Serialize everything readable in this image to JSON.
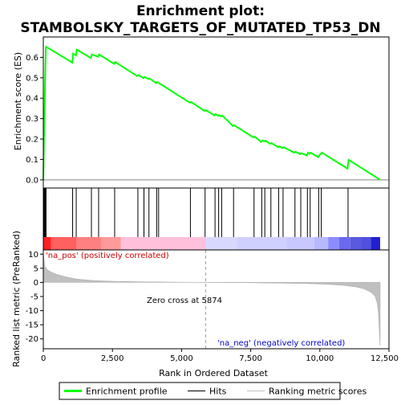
{
  "chart_data": {
    "type": "line",
    "title": "Enrichment plot:\nSTAMBOLSKY_TARGETS_OF_MUTATED_TP53_DN",
    "title_lines": [
      "Enrichment plot:",
      "STAMBOLSKY_TARGETS_OF_MUTATED_TP53_DN"
    ],
    "xlabel": "Rank in Ordered Dataset",
    "ylabel_top": "Enrichment score (ES)",
    "ylabel_bottom": "Ranked list metric (PreRanked)",
    "xlim": [
      0,
      12500
    ],
    "es_ylim": [
      -0.04,
      0.7
    ],
    "metric_ylim": [
      -23.5,
      11.5
    ],
    "x_ticks": [
      0,
      2500,
      5000,
      7500,
      10000,
      12500
    ],
    "x_tick_labels": [
      "0",
      "2,500",
      "5,000",
      "7,500",
      "10,000",
      "12,500"
    ],
    "es_ticks": [
      0.0,
      0.1,
      0.2,
      0.3,
      0.4,
      0.5,
      0.6
    ],
    "es_tick_labels": [
      "0.0",
      "0.1",
      "0.2",
      "0.3",
      "0.4",
      "0.5",
      "0.6"
    ],
    "metric_ticks": [
      10,
      5,
      0,
      -5,
      -10,
      -15,
      -20
    ],
    "metric_tick_labels": [
      "10",
      "5",
      "0",
      "-5",
      "-10",
      "-15",
      "-20"
    ],
    "enrichment_profile": {
      "name": "Enrichment profile",
      "color": "#00ff00",
      "x": [
        0,
        30,
        60,
        90,
        100,
        1050,
        1080,
        1180,
        1210,
        1720,
        1760,
        1980,
        2020,
        2560,
        2600,
        3400,
        3440,
        3620,
        3660,
        3800,
        3840,
        4080,
        4120,
        4180,
        5300,
        5340,
        5830,
        5870,
        6190,
        6230,
        6320,
        6360,
        6430,
        6470,
        6860,
        6900,
        7600,
        7640,
        7880,
        7920,
        7990,
        8030,
        8210,
        8250,
        8490,
        8530,
        8650,
        8690,
        9080,
        9120,
        9290,
        9330,
        9530,
        9570,
        9630,
        9670,
        9940,
        9980,
        10030,
        10070,
        11000,
        11040,
        12180
      ],
      "y": [
        0.0,
        0.23,
        0.46,
        0.64,
        0.652,
        0.575,
        0.618,
        0.61,
        0.638,
        0.597,
        0.614,
        0.603,
        0.614,
        0.568,
        0.577,
        0.508,
        0.513,
        0.499,
        0.504,
        0.494,
        0.497,
        0.474,
        0.479,
        0.474,
        0.378,
        0.382,
        0.338,
        0.342,
        0.316,
        0.322,
        0.314,
        0.317,
        0.311,
        0.315,
        0.264,
        0.268,
        0.208,
        0.212,
        0.186,
        0.193,
        0.188,
        0.192,
        0.176,
        0.18,
        0.16,
        0.164,
        0.156,
        0.16,
        0.133,
        0.138,
        0.126,
        0.131,
        0.12,
        0.133,
        0.128,
        0.133,
        0.111,
        0.121,
        0.126,
        0.134,
        0.055,
        0.098,
        0.0
      ]
    },
    "hits": {
      "name": "Hits",
      "color": "#000000",
      "x": [
        20,
        40,
        60,
        80,
        100,
        1060,
        1190,
        1740,
        2000,
        2580,
        3420,
        3640,
        3820,
        4100,
        4170,
        5320,
        5850,
        6210,
        6340,
        6450,
        6880,
        7620,
        7900,
        8010,
        8230,
        8510,
        8670,
        9100,
        9310,
        9550,
        9650,
        9960,
        10050,
        11020
      ]
    },
    "ranking_metric": {
      "name": "Ranking metric scores",
      "color": "#c0c0c0",
      "x": [
        0,
        50,
        150,
        300,
        500,
        800,
        1200,
        1800,
        2500,
        3500,
        4500,
        5500,
        5874,
        6500,
        7500,
        8500,
        9500,
        10200,
        10800,
        11300,
        11600,
        11850,
        12000,
        12080,
        12120,
        12150,
        12180
      ],
      "y": [
        10.8,
        5.8,
        4.4,
        3.6,
        2.8,
        2.0,
        1.2,
        0.65,
        0.4,
        0.22,
        0.12,
        0.04,
        0.0,
        -0.06,
        -0.14,
        -0.24,
        -0.42,
        -0.65,
        -1.0,
        -1.6,
        -2.3,
        -3.5,
        -5.0,
        -7.5,
        -11.0,
        -17.0,
        -22.5
      ]
    },
    "zero_cross": 5874,
    "annotations": {
      "pos_label": "'na_pos' (positively correlated)",
      "neg_label": "'na_neg' (negatively correlated)",
      "zero_cross_label": "Zero cross at 5874"
    },
    "colors": {
      "pos_label": "#cc0000",
      "neg_label": "#0000cc",
      "gradient_red": "#ff0000",
      "gradient_blue": "#0000ff",
      "zero_cross_line": "#a0a0a0"
    },
    "gradient_band": {
      "boundaries": [
        0,
        280,
        1200,
        2100,
        2800,
        5874,
        7000,
        8800,
        9800,
        10300,
        10700,
        11100,
        11500,
        11850,
        12180
      ],
      "colors": [
        "#ff2020",
        "#ff6060",
        "#ff8080",
        "#ff9a9a",
        "#ffc0dc",
        "#d8d8ff",
        "#d0d0ff",
        "#c8c8ff",
        "#b8b8ff",
        "#8c8cff",
        "#6a6aee",
        "#5a5ae0",
        "#5050e0",
        "#2020d0"
      ]
    },
    "legend": {
      "position": "bottom",
      "items": [
        {
          "name": "Enrichment profile",
          "color": "#00ff00"
        },
        {
          "name": "Hits",
          "color": "#000000"
        },
        {
          "name": "Ranking metric scores",
          "color": "#c0c0c0"
        }
      ]
    },
    "grid": false
  }
}
